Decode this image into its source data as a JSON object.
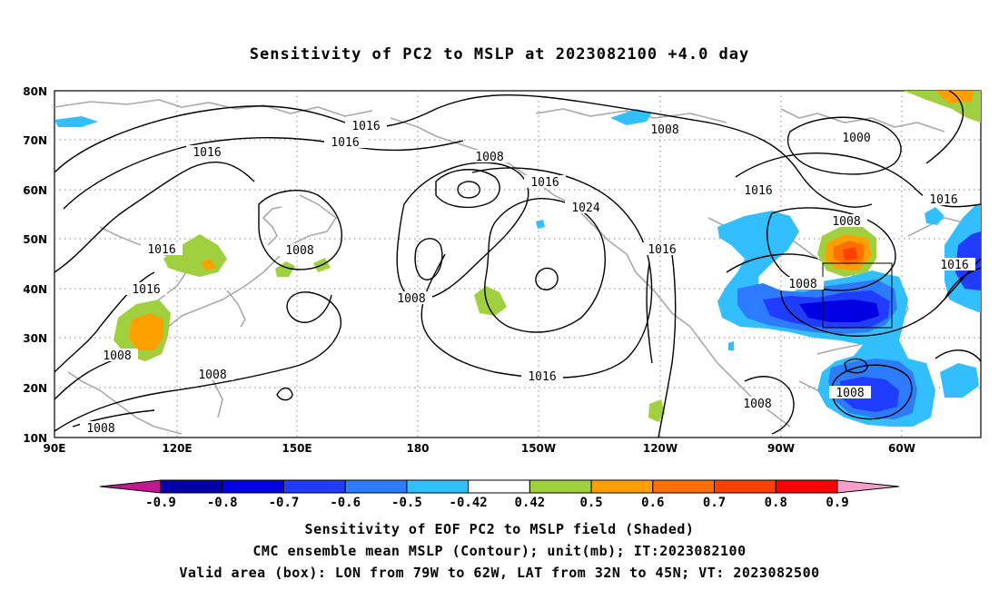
{
  "title": "Sensitivity of PC2 to MSLP at 2023082100 +4.0 day",
  "map": {
    "lat_labels": [
      "80N",
      "70N",
      "60N",
      "50N",
      "40N",
      "30N",
      "20N",
      "10N"
    ],
    "lon_labels": [
      "90E",
      "120E",
      "150E",
      "180",
      "150W",
      "120W",
      "90W",
      "60W"
    ],
    "contour_labels": [
      "1016",
      "1016",
      "1016",
      "1008",
      "1008",
      "1000",
      "1016",
      "1016",
      "1016",
      "1024",
      "1016",
      "1008",
      "1016",
      "1016",
      "1008",
      "1008",
      "1008",
      "1008",
      "1008",
      "1016",
      "1008",
      "1008"
    ],
    "valid_box": {
      "lon_min": "79W",
      "lon_max": "62W",
      "lat_min": "32N",
      "lat_max": "45N"
    }
  },
  "colorbar": {
    "labels": [
      "-0.9",
      "-0.8",
      "-0.7",
      "-0.6",
      "-0.5",
      "-0.42",
      "0.42",
      "0.5",
      "0.6",
      "0.7",
      "0.8",
      "0.9"
    ],
    "colors": [
      "#0000a8",
      "#0000e0",
      "#1f3cff",
      "#2d7bff",
      "#33bfff",
      "#ffffff",
      "#a0d040",
      "#ffa000",
      "#ff7000",
      "#ff4000",
      "#ff0000"
    ],
    "low_end_color": "#c01890",
    "high_end_color": "#f4a0c8"
  },
  "captions": {
    "line1": "Sensitivity of EOF PC2 to MSLP field (Shaded)",
    "line2": "CMC ensemble mean MSLP (Contour); unit(mb); IT:2023082100",
    "line3": "Valid area (box): LON from 79W to 62W, LAT from 32N to 45N; VT: 2023082500"
  }
}
